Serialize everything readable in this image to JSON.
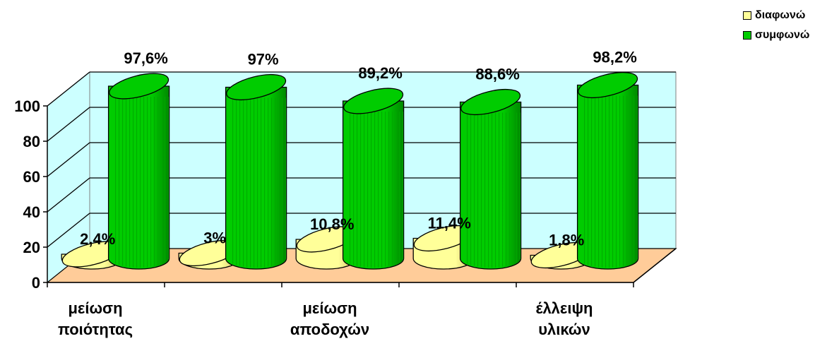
{
  "chart_data": {
    "type": "bar",
    "subtype": "3d-cylinder",
    "categories": [
      "μείωση ποιότητας",
      "",
      "μείωση αποδοχών",
      "",
      "έλλειψη υλικών"
    ],
    "category_labels_shown": [
      {
        "index": 0,
        "text": "μείωση\nποιότητας"
      },
      {
        "index": 2,
        "text": "μείωση\nαποδοχών"
      },
      {
        "index": 4,
        "text": "έλλειψη\nυλικών"
      }
    ],
    "series": [
      {
        "name": "διαφωνώ",
        "values": [
          2.4,
          3,
          10.8,
          11.4,
          1.8
        ],
        "data_labels": [
          "2,4%",
          "3%",
          "10,8%",
          "11,4%",
          "1,8%"
        ],
        "color": "#FFFF99"
      },
      {
        "name": "συμφωνώ",
        "values": [
          97.6,
          97,
          89.2,
          88.6,
          98.2
        ],
        "data_labels": [
          "97,6%",
          "97%",
          "89,2%",
          "88,6%",
          "98,2%"
        ],
        "color": "#00CC00"
      }
    ],
    "ylim": [
      0,
      100
    ],
    "yticks": [
      "0",
      "20",
      "40",
      "60",
      "80",
      "100"
    ],
    "grid": true,
    "legend_position": "top-right",
    "wall_color": "#CCFFFF",
    "floor_color": "#FFCC99"
  }
}
